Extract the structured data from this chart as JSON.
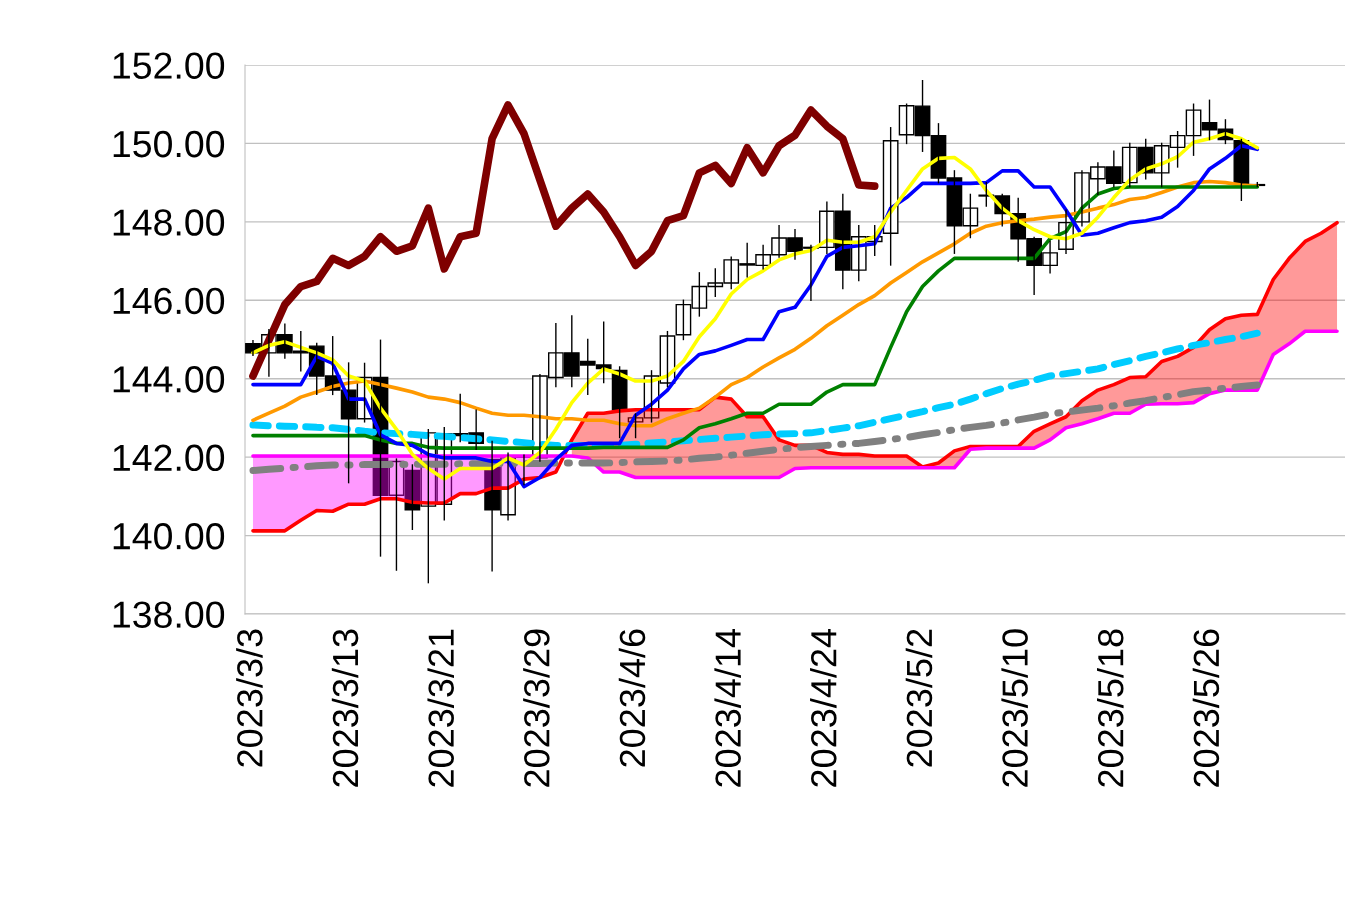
{
  "chart_data": {
    "type": "candlestick",
    "categories": [
      "2023/3/3",
      null,
      null,
      null,
      null,
      null,
      "2023/3/13",
      null,
      null,
      null,
      null,
      null,
      "2023/3/21",
      null,
      null,
      null,
      null,
      null,
      "2023/3/29",
      null,
      null,
      null,
      null,
      null,
      "2023/4/6",
      null,
      null,
      null,
      null,
      null,
      "2023/4/14",
      null,
      null,
      null,
      null,
      null,
      "2023/4/24",
      null,
      null,
      null,
      null,
      null,
      "2023/5/2",
      null,
      null,
      null,
      null,
      null,
      "2023/5/10",
      null,
      null,
      null,
      null,
      null,
      "2023/5/18",
      null,
      null,
      null,
      null,
      null,
      "2023/5/26",
      null,
      null,
      null,
      null,
      null,
      null,
      null,
      null
    ],
    "ohlc": [
      [
        144.89,
        144.97,
        144.6,
        144.66
      ],
      [
        144.66,
        145.25,
        144.07,
        145.12
      ],
      [
        145.12,
        145.39,
        144.53,
        144.66
      ],
      [
        144.7,
        145.2,
        144.2,
        144.66
      ],
      [
        144.83,
        144.9,
        143.6,
        144.07
      ],
      [
        144.07,
        145.07,
        143.6,
        143.71
      ],
      [
        143.71,
        144.4,
        141.35,
        142.98
      ],
      [
        142.98,
        144.39,
        142.9,
        144.03
      ],
      [
        144.03,
        144.98,
        139.48,
        141.03
      ],
      [
        141.03,
        141.95,
        139.12,
        141.89
      ],
      [
        141.66,
        141.8,
        140.16,
        140.66
      ],
      [
        140.75,
        142.7,
        138.8,
        142.62
      ],
      [
        140.8,
        142.75,
        140.4,
        142.6
      ],
      [
        142.6,
        143.6,
        142.4,
        142.55
      ],
      [
        142.62,
        143.2,
        142.2,
        142.35
      ],
      [
        141.94,
        142.4,
        139.1,
        140.66
      ],
      [
        140.53,
        142.1,
        140.4,
        141.98
      ],
      [
        142.0,
        142.05,
        141.3,
        142.02
      ],
      [
        141.98,
        144.1,
        141.9,
        144.07
      ],
      [
        144.03,
        145.4,
        143.8,
        144.66
      ],
      [
        144.66,
        145.6,
        143.8,
        144.07
      ],
      [
        144.44,
        145.0,
        143.6,
        144.35
      ],
      [
        144.35,
        145.44,
        143.9,
        144.26
      ],
      [
        144.21,
        144.3,
        142.5,
        143.21
      ],
      [
        142.9,
        143.1,
        142.5,
        143.0
      ],
      [
        143.0,
        144.2,
        142.9,
        144.07
      ],
      [
        143.89,
        145.2,
        143.8,
        145.09
      ],
      [
        145.12,
        146.0,
        145.0,
        145.89
      ],
      [
        145.8,
        146.7,
        145.6,
        146.35
      ],
      [
        146.35,
        146.8,
        146.1,
        146.44
      ],
      [
        146.44,
        147.1,
        146.3,
        147.03
      ],
      [
        146.9,
        147.45,
        146.6,
        146.93
      ],
      [
        146.89,
        147.4,
        146.8,
        147.16
      ],
      [
        147.16,
        147.9,
        147.1,
        147.59
      ],
      [
        147.59,
        147.8,
        147.05,
        147.25
      ],
      [
        147.35,
        147.4,
        146.0,
        147.33
      ],
      [
        147.35,
        148.5,
        147.2,
        148.27
      ],
      [
        148.27,
        148.7,
        146.3,
        146.77
      ],
      [
        146.77,
        147.9,
        146.5,
        147.62
      ],
      [
        147.5,
        147.9,
        147.15,
        147.62
      ],
      [
        147.71,
        150.4,
        146.9,
        150.07
      ],
      [
        150.22,
        151.0,
        150.0,
        150.96
      ],
      [
        150.95,
        151.6,
        149.8,
        150.2
      ],
      [
        150.2,
        150.5,
        149.0,
        149.12
      ],
      [
        149.12,
        149.3,
        147.2,
        147.9
      ],
      [
        147.9,
        148.7,
        147.6,
        148.35
      ],
      [
        148.66,
        149.0,
        148.4,
        148.68
      ],
      [
        148.66,
        148.7,
        147.9,
        148.21
      ],
      [
        148.21,
        148.6,
        147.0,
        147.57
      ],
      [
        147.57,
        147.6,
        146.15,
        146.89
      ],
      [
        146.89,
        147.5,
        146.7,
        147.21
      ],
      [
        147.3,
        148.3,
        147.2,
        147.98
      ],
      [
        148.0,
        149.3,
        147.9,
        149.25
      ],
      [
        149.1,
        149.5,
        148.7,
        149.4
      ],
      [
        149.4,
        149.8,
        148.9,
        148.98
      ],
      [
        149.0,
        150.0,
        148.9,
        149.9
      ],
      [
        149.9,
        150.1,
        149.1,
        149.25
      ],
      [
        149.25,
        150.0,
        148.9,
        149.94
      ],
      [
        149.9,
        150.3,
        149.4,
        150.2
      ],
      [
        150.2,
        151.0,
        149.7,
        150.85
      ],
      [
        150.53,
        151.1,
        150.1,
        150.35
      ],
      [
        150.36,
        150.6,
        150.0,
        150.1
      ],
      [
        150.07,
        150.1,
        148.55,
        148.98
      ],
      [
        148.95,
        149.0,
        148.9,
        148.93
      ],
      null,
      null,
      null,
      null,
      null
    ],
    "series": [
      {
        "type": "line",
        "color": "#7f0000",
        "line_style": "solid",
        "values": [
          144.07,
          144.98,
          145.89,
          146.35,
          146.48,
          147.07,
          146.89,
          147.12,
          147.62,
          147.25,
          147.39,
          148.35,
          146.8,
          147.62,
          147.71,
          150.12,
          150.98,
          150.25,
          149.07,
          147.89,
          148.35,
          148.71,
          148.25,
          147.62,
          146.89,
          147.25,
          148.03,
          148.16,
          149.25,
          149.44,
          148.98,
          149.89,
          149.25,
          149.94,
          150.21,
          150.85,
          150.44,
          150.12,
          148.94,
          148.91,
          null,
          null,
          null,
          null,
          null,
          null,
          null,
          null,
          null,
          null,
          null,
          null,
          null,
          null,
          null,
          null,
          null,
          null,
          null,
          null,
          null,
          null,
          null,
          null,
          null,
          null,
          null,
          null,
          null
        ]
      },
      {
        "type": "line",
        "color": "#ff0000",
        "line_style": "solid",
        "upper": [
          null,
          null,
          null,
          null,
          null,
          null,
          null,
          null,
          null,
          null,
          null,
          null,
          null,
          null,
          null,
          null,
          null,
          null,
          null,
          null,
          142.44,
          143.12,
          143.12,
          143.18,
          143.21,
          143.21,
          143.21,
          143.21,
          143.21,
          143.53,
          143.48,
          143.03,
          143.03,
          142.44,
          142.3,
          142.3,
          142.12,
          142.07,
          142.07,
          142.03,
          142.03,
          142.03,
          141.75,
          141.85,
          142.16,
          142.27,
          142.27,
          142.27,
          142.27,
          142.66,
          142.85,
          143.03,
          143.44,
          143.71,
          143.85,
          144.03,
          144.05,
          144.44,
          144.57,
          144.8,
          145.25,
          145.53,
          145.62,
          145.64,
          146.53,
          147.07,
          147.5,
          147.71,
          147.98
        ],
        "lower": [
          null,
          null,
          null,
          null,
          null,
          null,
          null,
          null,
          null,
          null,
          null,
          null,
          null,
          null,
          null,
          null,
          null,
          null,
          null,
          null,
          142.03,
          141.98,
          141.62,
          141.62,
          141.48,
          141.48,
          141.48,
          141.48,
          141.48,
          141.48,
          141.48,
          141.48,
          141.48,
          141.48,
          141.71,
          141.73,
          141.73,
          141.73,
          141.73,
          141.73,
          141.73,
          141.73,
          141.73,
          141.73,
          141.73,
          142.2,
          142.23,
          142.23,
          142.23,
          142.23,
          142.44,
          142.75,
          142.85,
          142.98,
          143.12,
          143.12,
          143.35,
          143.36,
          143.36,
          143.39,
          143.62,
          143.71,
          143.71,
          143.71,
          144.62,
          144.89,
          145.21,
          145.21,
          145.21
        ],
        "values": [
          140.12,
          140.12,
          140.12,
          140.39,
          140.64,
          140.62,
          140.8,
          140.8,
          140.94,
          140.94,
          140.85,
          140.83,
          140.83,
          141.07,
          141.07,
          141.21,
          141.21,
          141.44,
          141.48,
          141.62,
          142.44,
          143.12,
          143.12,
          143.18,
          143.21,
          143.21,
          143.21,
          143.21,
          143.21,
          143.53,
          143.48,
          143.03,
          143.03,
          142.44,
          142.3,
          142.3,
          142.12,
          142.07,
          142.07,
          142.03,
          142.03,
          142.03,
          141.75,
          141.85,
          142.16,
          142.27,
          142.27,
          142.27,
          142.27,
          142.66,
          142.85,
          143.03,
          143.44,
          143.71,
          143.85,
          144.03,
          144.05,
          144.44,
          144.57,
          144.8,
          145.25,
          145.53,
          145.62,
          145.64,
          146.53,
          147.07,
          147.5,
          147.71,
          147.98
        ]
      },
      {
        "type": "line",
        "color": "#ff00ff",
        "line_style": "solid",
        "lower": [
          140.12,
          140.12,
          140.12,
          140.39,
          140.64,
          140.62,
          140.8,
          140.8,
          140.94,
          140.94,
          140.85,
          140.83,
          140.83,
          141.07,
          141.07,
          141.21,
          141.21,
          141.44,
          141.48,
          141.62,
          null,
          null,
          null,
          null,
          null,
          null,
          null,
          null,
          null,
          null,
          null,
          null,
          null,
          null,
          null,
          null,
          null,
          null,
          null,
          null,
          null,
          null,
          null,
          null,
          null,
          null,
          null,
          null,
          null,
          null,
          null,
          null,
          null,
          null,
          null,
          null,
          null,
          null,
          null,
          null,
          null,
          null,
          null,
          null,
          null,
          null,
          null,
          null,
          null
        ],
        "upper": [
          142.03,
          142.03,
          142.03,
          142.03,
          142.03,
          142.03,
          142.03,
          142.03,
          142.03,
          142.03,
          142.03,
          142.03,
          142.03,
          142.03,
          142.03,
          142.03,
          142.03,
          142.03,
          142.03,
          142.03,
          null,
          null,
          null,
          null,
          null,
          null,
          null,
          null,
          null,
          null,
          null,
          null,
          null,
          null,
          null,
          null,
          null,
          null,
          null,
          null,
          null,
          null,
          null,
          null,
          null,
          null,
          null,
          null,
          null,
          null,
          null,
          null,
          null,
          null,
          null,
          null,
          null,
          null,
          null,
          null,
          null,
          null,
          null,
          null,
          null,
          null,
          null,
          null,
          null
        ],
        "values": [
          142.03,
          142.03,
          142.03,
          142.03,
          142.03,
          142.03,
          142.03,
          142.03,
          142.03,
          142.03,
          142.03,
          142.03,
          142.03,
          142.03,
          142.03,
          142.03,
          142.03,
          142.03,
          142.03,
          142.03,
          142.03,
          141.98,
          141.62,
          141.62,
          141.48,
          141.48,
          141.48,
          141.48,
          141.48,
          141.48,
          141.48,
          141.48,
          141.48,
          141.48,
          141.71,
          141.73,
          141.73,
          141.73,
          141.73,
          141.73,
          141.73,
          141.73,
          141.73,
          141.73,
          141.73,
          142.2,
          142.23,
          142.23,
          142.23,
          142.23,
          142.44,
          142.75,
          142.85,
          142.98,
          143.12,
          143.12,
          143.35,
          143.36,
          143.36,
          143.39,
          143.62,
          143.71,
          143.71,
          143.71,
          144.62,
          144.89,
          145.21,
          145.21,
          145.21
        ]
      },
      {
        "type": "line",
        "color": "#00ccff",
        "line_style": "dashed",
        "values": [
          142.82,
          142.8,
          142.79,
          142.78,
          142.76,
          142.75,
          142.71,
          142.66,
          142.62,
          142.6,
          142.58,
          142.55,
          142.53,
          142.5,
          142.47,
          142.44,
          142.4,
          142.37,
          142.33,
          142.3,
          142.3,
          142.3,
          142.3,
          142.3,
          142.33,
          142.36,
          142.39,
          142.42,
          142.45,
          142.48,
          142.51,
          142.54,
          142.57,
          142.59,
          142.6,
          142.62,
          142.68,
          142.74,
          142.8,
          142.89,
          142.98,
          143.07,
          143.16,
          143.26,
          143.35,
          143.48,
          143.62,
          143.75,
          143.86,
          143.96,
          144.07,
          144.13,
          144.19,
          144.25,
          144.36,
          144.46,
          144.57,
          144.66,
          144.76,
          144.85,
          144.92,
          145.0,
          145.07,
          145.16,
          null,
          null,
          null,
          null,
          null
        ]
      },
      {
        "type": "line",
        "color": "#808080",
        "line_style": "dashdot",
        "values": [
          141.66,
          141.69,
          141.72,
          141.75,
          141.78,
          141.8,
          141.8,
          141.81,
          141.81,
          141.81,
          141.82,
          141.82,
          141.82,
          141.83,
          141.83,
          141.83,
          141.84,
          141.84,
          141.84,
          141.85,
          141.85,
          141.85,
          141.85,
          141.86,
          141.88,
          141.89,
          141.9,
          141.93,
          141.97,
          142.0,
          142.05,
          142.1,
          142.15,
          142.2,
          142.24,
          142.27,
          142.3,
          142.33,
          142.35,
          142.4,
          142.45,
          142.5,
          142.57,
          142.63,
          142.7,
          142.76,
          142.81,
          142.87,
          142.95,
          143.02,
          143.1,
          143.15,
          143.2,
          143.25,
          143.31,
          143.38,
          143.44,
          143.52,
          143.59,
          143.67,
          143.71,
          143.76,
          143.8,
          143.84,
          null,
          null,
          null,
          null,
          null
        ]
      },
      {
        "type": "line",
        "color": "#ff9900",
        "line_style": "solid",
        "values": [
          142.94,
          143.12,
          143.3,
          143.53,
          143.66,
          143.8,
          143.89,
          143.94,
          143.85,
          143.76,
          143.66,
          143.53,
          143.48,
          143.39,
          143.25,
          143.12,
          143.07,
          143.07,
          143.03,
          142.98,
          142.98,
          142.94,
          142.94,
          142.85,
          142.8,
          142.8,
          142.98,
          143.12,
          143.25,
          143.53,
          143.85,
          144.03,
          144.3,
          144.53,
          144.75,
          145.03,
          145.35,
          145.62,
          145.89,
          146.12,
          146.44,
          146.71,
          146.98,
          147.21,
          147.44,
          147.71,
          147.89,
          147.98,
          148.03,
          148.07,
          148.12,
          148.16,
          148.25,
          148.35,
          148.44,
          148.57,
          148.62,
          148.75,
          148.89,
          149.0,
          149.03,
          149.0,
          148.94,
          148.91,
          null,
          null,
          null,
          null,
          null
        ]
      },
      {
        "type": "line",
        "color": "#008000",
        "line_style": "solid",
        "values": [
          142.55,
          142.55,
          142.55,
          142.55,
          142.55,
          142.55,
          142.55,
          142.55,
          142.44,
          142.35,
          142.35,
          142.25,
          142.23,
          142.23,
          142.23,
          142.23,
          142.23,
          142.23,
          142.23,
          142.23,
          142.23,
          142.23,
          142.25,
          142.25,
          142.25,
          142.25,
          142.25,
          142.44,
          142.75,
          142.85,
          142.98,
          143.12,
          143.12,
          143.35,
          143.35,
          143.35,
          143.66,
          143.85,
          143.85,
          143.85,
          144.8,
          145.71,
          146.35,
          146.75,
          147.07,
          147.07,
          147.07,
          147.07,
          147.07,
          147.07,
          147.57,
          147.75,
          148.35,
          148.71,
          148.85,
          148.89,
          148.89,
          148.89,
          148.89,
          148.89,
          148.89,
          148.89,
          148.89,
          148.89,
          null,
          null,
          null,
          null,
          null
        ]
      },
      {
        "type": "line",
        "color": "#0000ff",
        "line_style": "solid",
        "values": [
          143.85,
          143.85,
          143.85,
          143.85,
          144.57,
          144.39,
          143.48,
          143.48,
          142.57,
          142.35,
          142.3,
          142.07,
          141.98,
          141.98,
          141.98,
          141.89,
          141.89,
          141.25,
          141.48,
          141.94,
          142.3,
          142.35,
          142.35,
          142.35,
          143.07,
          143.35,
          143.71,
          144.25,
          144.62,
          144.71,
          144.85,
          145.0,
          145.0,
          145.71,
          145.82,
          146.39,
          147.12,
          147.35,
          147.39,
          147.44,
          148.35,
          148.62,
          148.98,
          148.98,
          148.98,
          148.98,
          149.0,
          149.3,
          149.3,
          148.89,
          148.89,
          148.3,
          147.66,
          147.71,
          147.85,
          147.98,
          148.03,
          148.12,
          148.39,
          148.8,
          149.35,
          149.62,
          149.94,
          149.85,
          null,
          null,
          null,
          null,
          null
        ]
      },
      {
        "type": "line",
        "color": "#ffff00",
        "line_style": "solid",
        "values": [
          144.66,
          144.85,
          144.94,
          144.8,
          144.66,
          144.48,
          144.07,
          143.94,
          143.25,
          142.71,
          142.07,
          141.71,
          141.44,
          141.71,
          141.71,
          141.71,
          141.98,
          141.8,
          142.12,
          142.71,
          143.39,
          143.89,
          144.25,
          144.12,
          143.94,
          143.94,
          144.07,
          144.44,
          145.07,
          145.53,
          146.16,
          146.53,
          146.75,
          147.03,
          147.18,
          147.27,
          147.53,
          147.48,
          147.48,
          147.62,
          148.25,
          148.8,
          149.35,
          149.62,
          149.64,
          149.35,
          148.8,
          148.35,
          148.03,
          147.8,
          147.62,
          147.57,
          147.71,
          148.12,
          148.62,
          149.07,
          149.35,
          149.48,
          149.66,
          150.03,
          150.12,
          150.25,
          150.12,
          149.89,
          null,
          null,
          null,
          null,
          null
        ]
      }
    ],
    "ylim": [
      138,
      152
    ],
    "yticks": [
      {
        "value": 138,
        "label": "138.00"
      },
      {
        "value": 140,
        "label": "140.00"
      },
      {
        "value": 142,
        "label": "142.00"
      },
      {
        "value": 144,
        "label": "144.00"
      },
      {
        "value": 146,
        "label": "146.00"
      },
      {
        "value": 148,
        "label": "148.00"
      },
      {
        "value": 150,
        "label": "150.00"
      },
      {
        "value": 152,
        "label": "152.00"
      }
    ],
    "grid": "y",
    "legend": false
  }
}
